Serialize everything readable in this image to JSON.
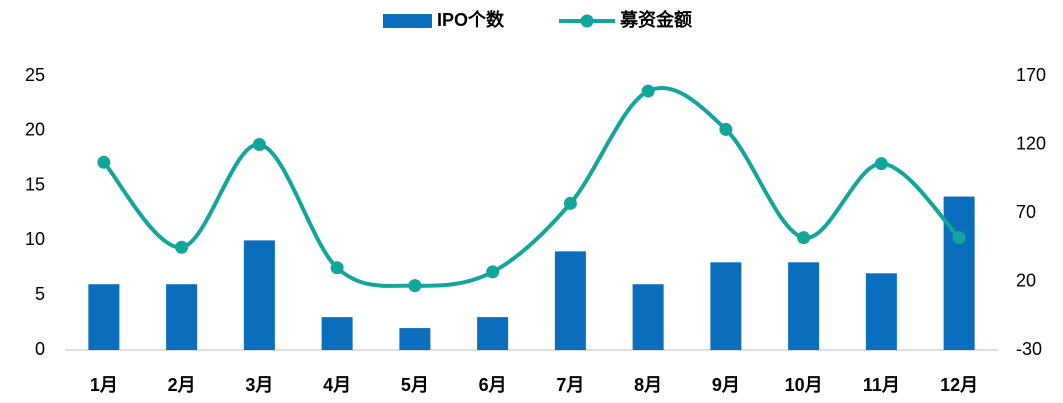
{
  "chart_data": {
    "type": "bar",
    "categories": [
      "1月",
      "2月",
      "3月",
      "4月",
      "5月",
      "6月",
      "7月",
      "8月",
      "9月",
      "10月",
      "11月",
      "12月"
    ],
    "series": [
      {
        "name": "IPO个数",
        "type": "bar",
        "color": "#0a6ebd",
        "values": [
          6,
          6,
          10,
          3,
          2,
          3,
          9,
          6,
          8,
          8,
          7,
          14
        ]
      },
      {
        "name": "募资金额",
        "type": "line",
        "axis": "y2",
        "color": "#12a59a",
        "values": [
          107,
          45,
          120,
          30,
          17,
          27,
          77,
          159,
          131,
          52,
          106,
          52
        ]
      }
    ],
    "ylim": [
      0,
      25
    ],
    "yticks": [
      0,
      5,
      10,
      15,
      20,
      25
    ],
    "y2lim": [
      -30,
      170
    ],
    "y2ticks": [
      -30,
      20,
      70,
      120,
      170
    ],
    "legend": "top"
  }
}
